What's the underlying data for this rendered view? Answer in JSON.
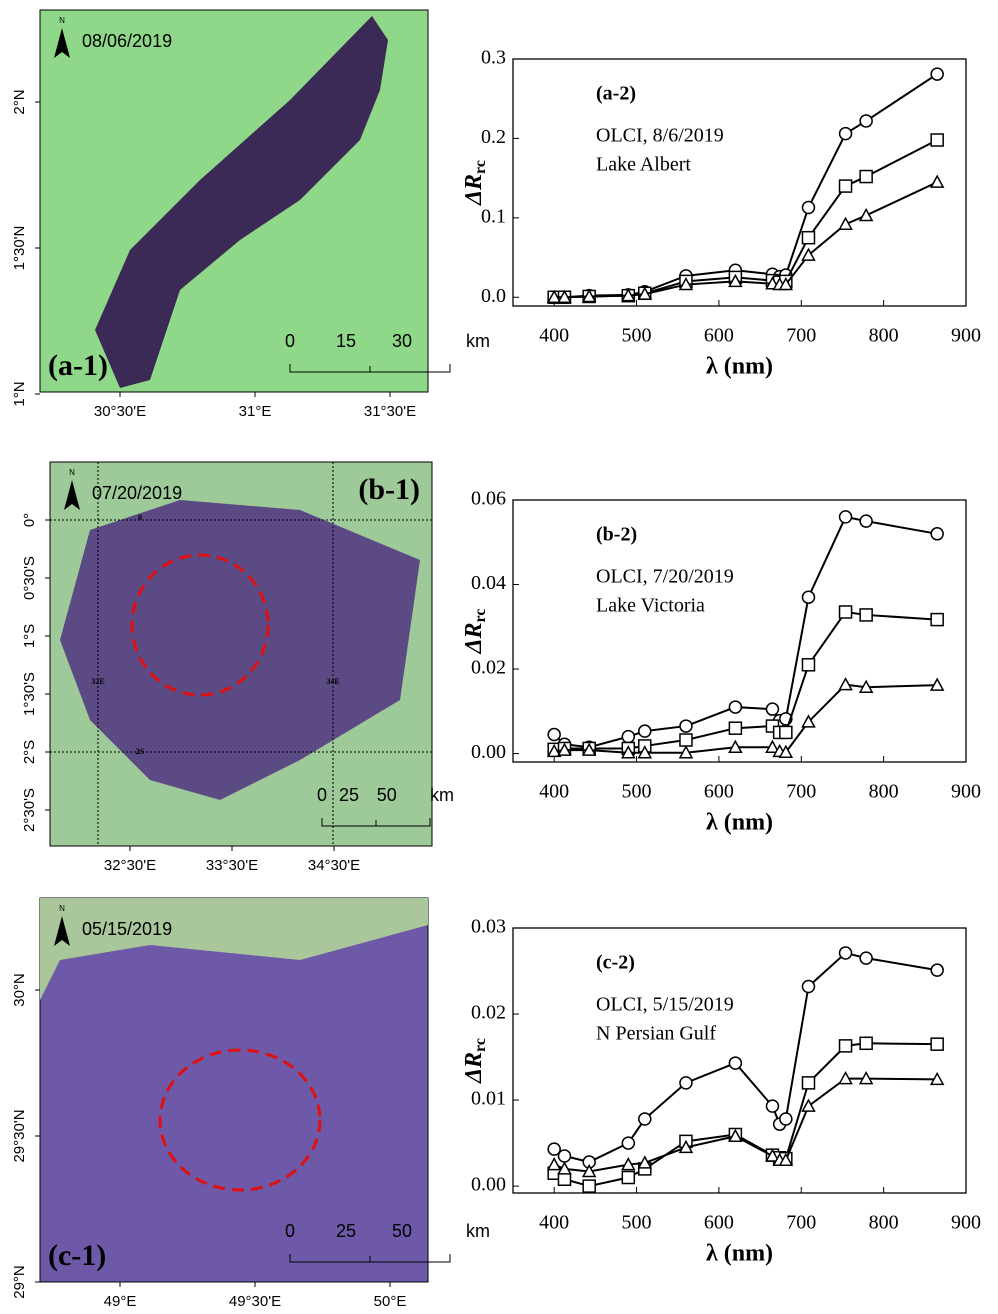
{
  "chart_data": [
    {
      "type": "line",
      "annotations": [
        "(a-2)",
        "OLCI, 8/6/2019",
        "Lake Albert"
      ],
      "ylabel": "ΔR",
      "ylabel_sub": "rc",
      "xlabel": "λ (nm)",
      "x": [
        400,
        412.5,
        442.5,
        490,
        510,
        560,
        620,
        665,
        673.75,
        681.25,
        708.75,
        753.75,
        778.75,
        865
      ],
      "xlim": [
        350,
        900
      ],
      "xticks": [
        400,
        500,
        600,
        700,
        800,
        900
      ],
      "ylim": [
        -0.011,
        0.3
      ],
      "yticks": [
        {
          "value": 0,
          "label": "0.0"
        },
        0.1,
        0.2,
        0.3
      ],
      "series": [
        {
          "marker": "circle",
          "color": "#000000",
          "values": [
            0,
            0,
            0.002,
            0.003,
            0.007,
            0.027,
            0.034,
            0.029,
            0.026,
            0.028,
            0.113,
            0.206,
            0.222,
            0.281
          ]
        },
        {
          "marker": "square",
          "color": "#000000",
          "values": [
            0,
            0,
            0.001,
            0.002,
            0.005,
            0.02,
            0.025,
            0.021,
            0.019,
            0.02,
            0.075,
            0.14,
            0.152,
            0.198
          ]
        },
        {
          "marker": "triangle",
          "color": "#000000",
          "values": [
            0,
            0,
            0.001,
            0.002,
            0.004,
            0.016,
            0.02,
            0.017,
            0.016,
            0.016,
            0.053,
            0.092,
            0.103,
            0.145
          ]
        }
      ]
    },
    {
      "type": "line",
      "annotations": [
        "(b-2)",
        "OLCI, 7/20/2019",
        "Lake Victoria"
      ],
      "ylabel": "ΔR",
      "ylabel_sub": "rc",
      "xlabel": "λ (nm)",
      "x": [
        400,
        412.5,
        442.5,
        490,
        510,
        560,
        620,
        665,
        673.75,
        681.25,
        708.75,
        753.75,
        778.75,
        865
      ],
      "xlim": [
        350,
        900
      ],
      "xticks": [
        400,
        500,
        600,
        700,
        800,
        900
      ],
      "ylim": [
        -0.002,
        0.06
      ],
      "yticks": [
        {
          "value": 0,
          "label": "0.00"
        },
        {
          "value": 0.02,
          "label": "0.02"
        },
        {
          "value": 0.04,
          "label": "0.04"
        },
        {
          "value": 0.06,
          "label": "0.06"
        }
      ],
      "series": [
        {
          "marker": "circle",
          "color": "#000000",
          "values": [
            0.0045,
            0.0022,
            0.0015,
            0.004,
            0.0053,
            0.0065,
            0.011,
            0.0105,
            0.0078,
            0.0082,
            0.037,
            0.056,
            0.055,
            0.052
          ]
        },
        {
          "marker": "square",
          "color": "#000000",
          "values": [
            0.001,
            0.0012,
            0.0012,
            0.0012,
            0.0018,
            0.0032,
            0.006,
            0.0065,
            0.005,
            0.005,
            0.021,
            0.0335,
            0.0328,
            0.0317
          ]
        },
        {
          "marker": "triangle",
          "color": "#000000",
          "values": [
            0.0005,
            0.0008,
            0.0008,
            0.0002,
            0.0002,
            0.0002,
            0.0015,
            0.0015,
            0.0005,
            0.0003,
            0.0075,
            0.0163,
            0.0157,
            0.0162
          ]
        }
      ]
    },
    {
      "type": "line",
      "annotations": [
        "(c-2)",
        "OLCI, 5/15/2019",
        "N Persian Gulf"
      ],
      "ylabel": "ΔR",
      "ylabel_sub": "rc",
      "xlabel": "λ (nm)",
      "x": [
        400,
        412.5,
        442.5,
        490,
        510,
        560,
        620,
        665,
        673.75,
        681.25,
        708.75,
        753.75,
        778.75,
        865
      ],
      "xlim": [
        350,
        900
      ],
      "xticks": [
        400,
        500,
        600,
        700,
        800,
        900
      ],
      "ylim": [
        -0.0008,
        0.03
      ],
      "yticks": [
        {
          "value": 0,
          "label": "0.00"
        },
        {
          "value": 0.01,
          "label": "0.01"
        },
        {
          "value": 0.02,
          "label": "0.02"
        },
        {
          "value": 0.03,
          "label": "0.03"
        }
      ],
      "series": [
        {
          "marker": "circle",
          "color": "#000000",
          "values": [
            0.0043,
            0.0035,
            0.0028,
            0.005,
            0.0078,
            0.012,
            0.0143,
            0.0093,
            0.0072,
            0.0078,
            0.0232,
            0.0271,
            0.0265,
            0.0251
          ]
        },
        {
          "marker": "square",
          "color": "#000000",
          "values": [
            0.0015,
            0.0008,
            0,
            0.001,
            0.002,
            0.0052,
            0.006,
            0.0036,
            0.0033,
            0.0032,
            0.012,
            0.0163,
            0.0166,
            0.0165
          ]
        },
        {
          "marker": "triangle",
          "color": "#000000",
          "values": [
            0.0025,
            0.002,
            0.0017,
            0.0025,
            0.0027,
            0.0045,
            0.0058,
            0.0035,
            0.003,
            0.003,
            0.0093,
            0.0125,
            0.0125,
            0.0124
          ]
        }
      ]
    }
  ],
  "maps": [
    {
      "date": "08/06/2019",
      "panel": "(a-1)",
      "north": "N",
      "lat_ticks": [
        "2°N",
        "1°30'N",
        "1°N"
      ],
      "lon_ticks": [
        "30°30'E",
        "31°E",
        "31°30'E"
      ],
      "scale": [
        0,
        15,
        30,
        "km"
      ],
      "grid_labels": []
    },
    {
      "date": "07/20/2019",
      "panel": "(b-1)",
      "north": "N",
      "lat_ticks": [
        "0°",
        "0°30'S",
        "1°S",
        "1°30'S",
        "2°S",
        "2°30'S"
      ],
      "lon_ticks": [
        "32°30'E",
        "33°30'E",
        "34°30'E"
      ],
      "scale": [
        0,
        25,
        50,
        "km"
      ],
      "grid_labels": [
        "0",
        "32E",
        "34E",
        "2S"
      ]
    },
    {
      "date": "05/15/2019",
      "panel": "(c-1)",
      "north": "N",
      "lat_ticks": [
        "30°N",
        "29°30'N",
        "29°N"
      ],
      "lon_ticks": [
        "49°E",
        "49°30'E",
        "50°E"
      ],
      "scale": [
        0,
        25,
        50,
        "km"
      ],
      "grid_labels": []
    }
  ]
}
